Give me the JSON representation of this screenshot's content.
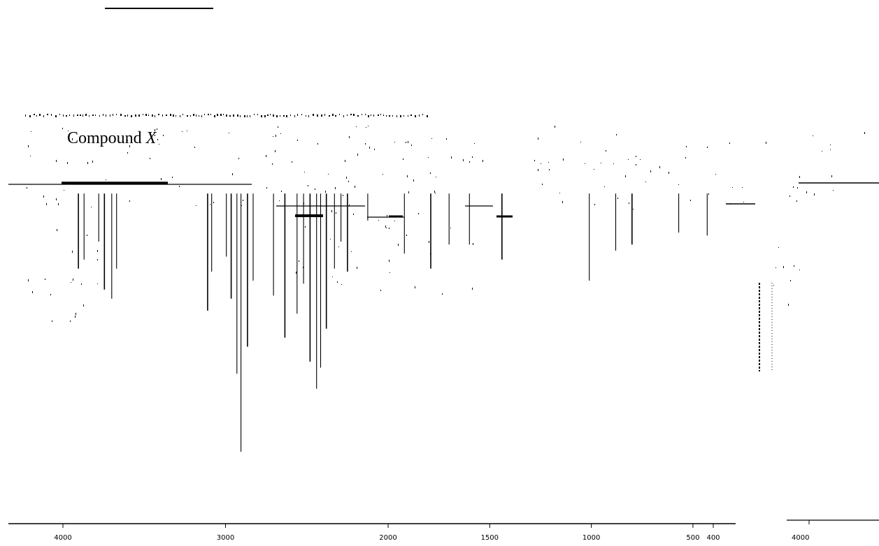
{
  "chart_data": {
    "type": "line",
    "title": {
      "prefix": "Compound ",
      "suffix": "X"
    },
    "xlabel": "",
    "ylabel": "",
    "xlim": [
      4000,
      400
    ],
    "ylim": [
      0,
      100
    ],
    "x_scale": "two-segment",
    "x_break": 2000,
    "x_ticks": [
      {
        "value": 4000,
        "label": "4000"
      },
      {
        "value": 3000,
        "label": "3000"
      },
      {
        "value": 2000,
        "label": "2000"
      },
      {
        "value": 1500,
        "label": "1500"
      },
      {
        "value": 1000,
        "label": "1000"
      },
      {
        "value": 500,
        "label": "500"
      },
      {
        "value": 400,
        "label": "400"
      }
    ],
    "grid": false,
    "legend": "none",
    "line_color": "#000000",
    "peaks": [
      {
        "x": 3905,
        "t": 71
      },
      {
        "x": 3870,
        "t": 74
      },
      {
        "x": 3780,
        "t": 80
      },
      {
        "x": 3745,
        "t": 64
      },
      {
        "x": 3700,
        "t": 61
      },
      {
        "x": 3670,
        "t": 71
      },
      {
        "x": 3110,
        "t": 57
      },
      {
        "x": 3085,
        "t": 70
      },
      {
        "x": 2995,
        "t": 75
      },
      {
        "x": 2965,
        "t": 61
      },
      {
        "x": 2930,
        "t": 36
      },
      {
        "x": 2905,
        "t": 10
      },
      {
        "x": 2865,
        "t": 45
      },
      {
        "x": 2830,
        "t": 67
      },
      {
        "x": 2705,
        "t": 62
      },
      {
        "x": 2635,
        "t": 48
      },
      {
        "x": 2560,
        "t": 56
      },
      {
        "x": 2520,
        "t": 66
      },
      {
        "x": 2480,
        "t": 40
      },
      {
        "x": 2440,
        "t": 31
      },
      {
        "x": 2415,
        "t": 38
      },
      {
        "x": 2380,
        "t": 51
      },
      {
        "x": 2330,
        "t": 71
      },
      {
        "x": 2290,
        "t": 80
      },
      {
        "x": 2250,
        "t": 70
      },
      {
        "x": 2125,
        "t": 87
      },
      {
        "x": 1920,
        "t": 76
      },
      {
        "x": 1790,
        "t": 71
      },
      {
        "x": 1700,
        "t": 79
      },
      {
        "x": 1600,
        "t": 79
      },
      {
        "x": 1440,
        "t": 74
      },
      {
        "x": 1010,
        "t": 67
      },
      {
        "x": 880,
        "t": 77
      },
      {
        "x": 800,
        "t": 79
      },
      {
        "x": 570,
        "t": 83
      },
      {
        "x": 430,
        "t": 82
      }
    ],
    "x_axis_right": {
      "xlim": [
        4000,
        3000
      ],
      "ticks": [
        {
          "value": 4000,
          "label": "4000"
        }
      ]
    }
  }
}
